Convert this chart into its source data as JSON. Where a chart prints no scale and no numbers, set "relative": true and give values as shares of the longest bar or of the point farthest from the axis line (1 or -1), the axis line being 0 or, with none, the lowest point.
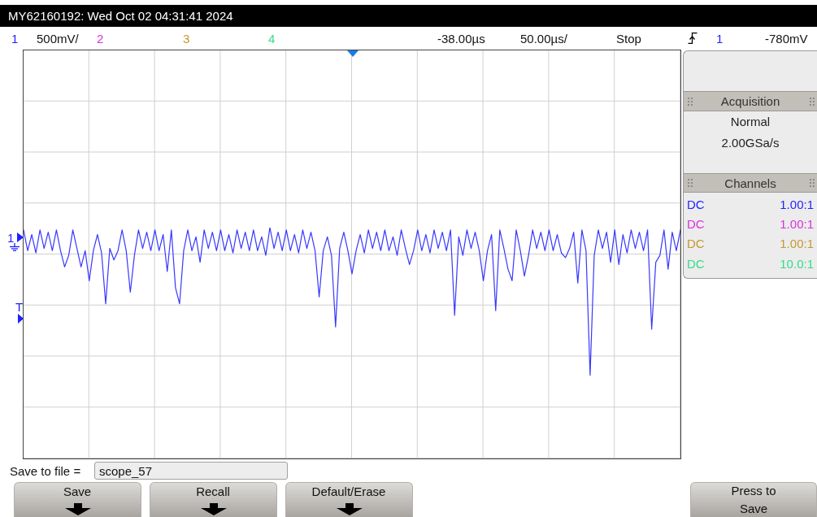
{
  "chart_data": {
    "type": "line",
    "title": "MY62160192: Wed Oct 02 04:31:41 2024",
    "relative": true,
    "categories": [
      null,
      null,
      null,
      null,
      null,
      null,
      null,
      null,
      null,
      null,
      null,
      null,
      null,
      null,
      null,
      null,
      null,
      null,
      null,
      null,
      null,
      null,
      null,
      null,
      null,
      null,
      null,
      null,
      null,
      null,
      null,
      null,
      null,
      null,
      null,
      null,
      null,
      null,
      null,
      null,
      null,
      null,
      null,
      null,
      null,
      null,
      null,
      null,
      null,
      null,
      null,
      null,
      null,
      null,
      null,
      null,
      null,
      null,
      null,
      null,
      null,
      null,
      null,
      null,
      null,
      null,
      null,
      null,
      null,
      null,
      null,
      null,
      null,
      null,
      null,
      null,
      null,
      null,
      null,
      null,
      null,
      null,
      null,
      null,
      null,
      null,
      null,
      null,
      null,
      null,
      null,
      null,
      null,
      null,
      null,
      null,
      null,
      null,
      null,
      null,
      null,
      null,
      null,
      null,
      null,
      null,
      null,
      null,
      null,
      null,
      null,
      null,
      null,
      null,
      null,
      null,
      null,
      null,
      null,
      null,
      null,
      null,
      null,
      null,
      null,
      null,
      null,
      null,
      null,
      null,
      null,
      null,
      null,
      null,
      null,
      null,
      null,
      null,
      null,
      null,
      null,
      null,
      null,
      null,
      null,
      null,
      null,
      null,
      null,
      null,
      null,
      null,
      null,
      null,
      null,
      null,
      null,
      null,
      null,
      null,
      null
    ],
    "series": [
      {
        "color": "#3838ff",
        "values": [
          0.99,
          0.9,
          0.97,
          0.89,
          0.99,
          0.91,
          0.98,
          0.9,
          0.99,
          0.9,
          0.83,
          0.88,
          0.99,
          0.91,
          0.83,
          0.9,
          0.77,
          0.9,
          0.97,
          0.89,
          0.67,
          0.91,
          0.86,
          0.9,
          0.99,
          0.9,
          0.72,
          0.88,
          0.99,
          0.91,
          0.98,
          0.9,
          0.99,
          0.9,
          0.97,
          0.81,
          0.99,
          0.74,
          0.67,
          0.9,
          0.99,
          0.9,
          0.96,
          0.85,
          0.99,
          0.91,
          0.98,
          0.9,
          0.99,
          0.9,
          0.97,
          0.89,
          0.99,
          0.91,
          0.98,
          0.9,
          0.99,
          0.9,
          0.96,
          0.88,
          1.0,
          0.91,
          0.98,
          0.9,
          0.99,
          0.9,
          0.97,
          0.89,
          0.99,
          0.91,
          0.98,
          0.9,
          0.7,
          0.9,
          0.96,
          0.88,
          0.57,
          0.91,
          0.98,
          0.9,
          0.8,
          0.9,
          0.97,
          0.89,
          0.99,
          0.91,
          0.98,
          0.9,
          0.99,
          0.9,
          0.96,
          0.88,
          0.99,
          0.91,
          0.84,
          0.9,
          0.99,
          0.9,
          0.97,
          0.89,
          0.99,
          0.91,
          0.98,
          0.9,
          0.99,
          0.62,
          0.96,
          0.88,
          0.99,
          0.91,
          0.98,
          0.9,
          0.77,
          0.9,
          0.97,
          0.64,
          0.99,
          0.91,
          0.82,
          0.77,
          0.99,
          0.9,
          0.79,
          0.88,
          0.99,
          0.91,
          0.98,
          0.9,
          0.99,
          0.9,
          0.97,
          0.89,
          0.87,
          0.91,
          0.98,
          0.76,
          0.99,
          0.9,
          0.36,
          0.88,
          0.99,
          0.91,
          0.98,
          0.85,
          0.99,
          0.84,
          0.97,
          0.89,
          0.99,
          0.91,
          0.98,
          0.9,
          0.99,
          0.56,
          0.85,
          0.88,
          0.99,
          0.82,
          0.98,
          0.9,
          0.99
        ]
      }
    ],
    "annotations": [
      "1",
      "500mV/",
      "2",
      "3",
      "4",
      "-38.00µs",
      "50.00µs/",
      "Stop",
      "1",
      "-780mV",
      "Acquisition",
      "Normal",
      "2.00GSa/s",
      "Channels",
      "DC",
      "1.00:1",
      "DC",
      "1.00:1",
      "DC",
      "1.00:1",
      "DC",
      "10.0:1",
      "Save to file =",
      "scope_57",
      "Save",
      "Recall",
      "Default/Erase",
      "Press to Save",
      "1",
      "T"
    ]
  }
}
